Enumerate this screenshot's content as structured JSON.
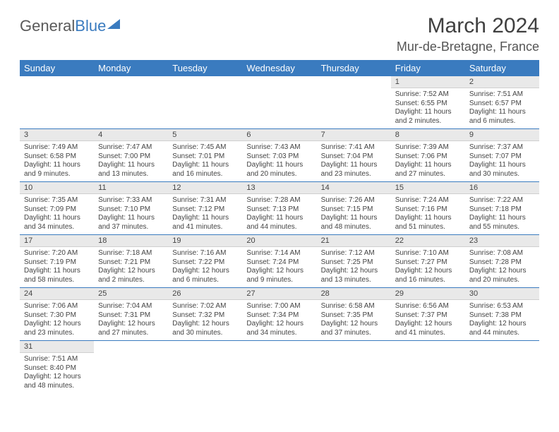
{
  "logo": {
    "part1": "General",
    "part2": "Blue"
  },
  "title": "March 2024",
  "location": "Mur-de-Bretagne, France",
  "weekdays": [
    "Sunday",
    "Monday",
    "Tuesday",
    "Wednesday",
    "Thursday",
    "Friday",
    "Saturday"
  ],
  "colors": {
    "header_bg": "#3a7bbf",
    "daynum_bg": "#e9e9e9",
    "row_border": "#3a7bbf"
  },
  "weeks": [
    [
      null,
      null,
      null,
      null,
      null,
      {
        "n": "1",
        "sr": "7:52 AM",
        "ss": "6:55 PM",
        "dl": "11 hours and 2 minutes."
      },
      {
        "n": "2",
        "sr": "7:51 AM",
        "ss": "6:57 PM",
        "dl": "11 hours and 6 minutes."
      }
    ],
    [
      {
        "n": "3",
        "sr": "7:49 AM",
        "ss": "6:58 PM",
        "dl": "11 hours and 9 minutes."
      },
      {
        "n": "4",
        "sr": "7:47 AM",
        "ss": "7:00 PM",
        "dl": "11 hours and 13 minutes."
      },
      {
        "n": "5",
        "sr": "7:45 AM",
        "ss": "7:01 PM",
        "dl": "11 hours and 16 minutes."
      },
      {
        "n": "6",
        "sr": "7:43 AM",
        "ss": "7:03 PM",
        "dl": "11 hours and 20 minutes."
      },
      {
        "n": "7",
        "sr": "7:41 AM",
        "ss": "7:04 PM",
        "dl": "11 hours and 23 minutes."
      },
      {
        "n": "8",
        "sr": "7:39 AM",
        "ss": "7:06 PM",
        "dl": "11 hours and 27 minutes."
      },
      {
        "n": "9",
        "sr": "7:37 AM",
        "ss": "7:07 PM",
        "dl": "11 hours and 30 minutes."
      }
    ],
    [
      {
        "n": "10",
        "sr": "7:35 AM",
        "ss": "7:09 PM",
        "dl": "11 hours and 34 minutes."
      },
      {
        "n": "11",
        "sr": "7:33 AM",
        "ss": "7:10 PM",
        "dl": "11 hours and 37 minutes."
      },
      {
        "n": "12",
        "sr": "7:31 AM",
        "ss": "7:12 PM",
        "dl": "11 hours and 41 minutes."
      },
      {
        "n": "13",
        "sr": "7:28 AM",
        "ss": "7:13 PM",
        "dl": "11 hours and 44 minutes."
      },
      {
        "n": "14",
        "sr": "7:26 AM",
        "ss": "7:15 PM",
        "dl": "11 hours and 48 minutes."
      },
      {
        "n": "15",
        "sr": "7:24 AM",
        "ss": "7:16 PM",
        "dl": "11 hours and 51 minutes."
      },
      {
        "n": "16",
        "sr": "7:22 AM",
        "ss": "7:18 PM",
        "dl": "11 hours and 55 minutes."
      }
    ],
    [
      {
        "n": "17",
        "sr": "7:20 AM",
        "ss": "7:19 PM",
        "dl": "11 hours and 58 minutes."
      },
      {
        "n": "18",
        "sr": "7:18 AM",
        "ss": "7:21 PM",
        "dl": "12 hours and 2 minutes."
      },
      {
        "n": "19",
        "sr": "7:16 AM",
        "ss": "7:22 PM",
        "dl": "12 hours and 6 minutes."
      },
      {
        "n": "20",
        "sr": "7:14 AM",
        "ss": "7:24 PM",
        "dl": "12 hours and 9 minutes."
      },
      {
        "n": "21",
        "sr": "7:12 AM",
        "ss": "7:25 PM",
        "dl": "12 hours and 13 minutes."
      },
      {
        "n": "22",
        "sr": "7:10 AM",
        "ss": "7:27 PM",
        "dl": "12 hours and 16 minutes."
      },
      {
        "n": "23",
        "sr": "7:08 AM",
        "ss": "7:28 PM",
        "dl": "12 hours and 20 minutes."
      }
    ],
    [
      {
        "n": "24",
        "sr": "7:06 AM",
        "ss": "7:30 PM",
        "dl": "12 hours and 23 minutes."
      },
      {
        "n": "25",
        "sr": "7:04 AM",
        "ss": "7:31 PM",
        "dl": "12 hours and 27 minutes."
      },
      {
        "n": "26",
        "sr": "7:02 AM",
        "ss": "7:32 PM",
        "dl": "12 hours and 30 minutes."
      },
      {
        "n": "27",
        "sr": "7:00 AM",
        "ss": "7:34 PM",
        "dl": "12 hours and 34 minutes."
      },
      {
        "n": "28",
        "sr": "6:58 AM",
        "ss": "7:35 PM",
        "dl": "12 hours and 37 minutes."
      },
      {
        "n": "29",
        "sr": "6:56 AM",
        "ss": "7:37 PM",
        "dl": "12 hours and 41 minutes."
      },
      {
        "n": "30",
        "sr": "6:53 AM",
        "ss": "7:38 PM",
        "dl": "12 hours and 44 minutes."
      }
    ],
    [
      {
        "n": "31",
        "sr": "7:51 AM",
        "ss": "8:40 PM",
        "dl": "12 hours and 48 minutes."
      },
      null,
      null,
      null,
      null,
      null,
      null
    ]
  ],
  "labels": {
    "sunrise": "Sunrise:",
    "sunset": "Sunset:",
    "daylight": "Daylight:"
  }
}
